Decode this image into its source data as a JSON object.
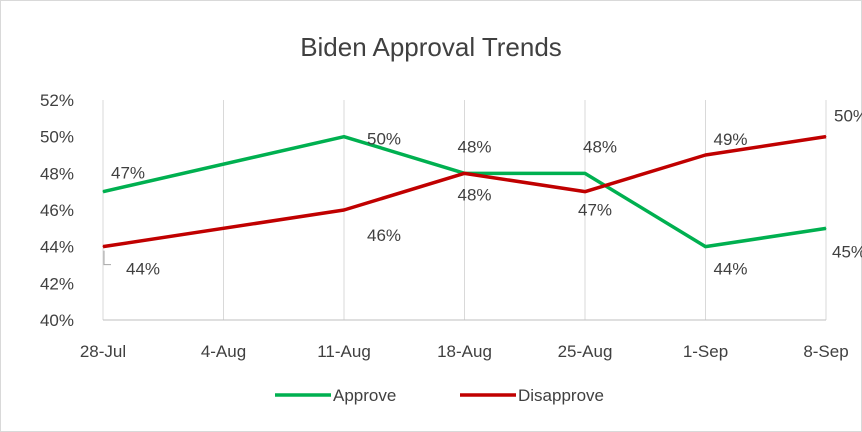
{
  "chart_data": {
    "type": "line",
    "title": "Biden Approval Trends",
    "categories": [
      "28-Jul",
      "4-Aug",
      "11-Aug",
      "18-Aug",
      "25-Aug",
      "1-Sep",
      "8-Sep"
    ],
    "ylim": [
      40,
      52
    ],
    "yticks": [
      "40%",
      "42%",
      "44%",
      "46%",
      "48%",
      "50%",
      "52%"
    ],
    "grid": "vertical",
    "legend": "bottom",
    "series": [
      {
        "name": "Approve",
        "color": "#00b050",
        "points": [
          {
            "x": "28-Jul",
            "y": 47,
            "label": "47%"
          },
          {
            "x": "11-Aug",
            "y": 50,
            "label": "50%"
          },
          {
            "x": "18-Aug",
            "y": 48,
            "label": "48%"
          },
          {
            "x": "25-Aug",
            "y": 48,
            "label": "48%"
          },
          {
            "x": "1-Sep",
            "y": 44,
            "label": "44%"
          },
          {
            "x": "8-Sep",
            "y": 45,
            "label": "45%"
          }
        ]
      },
      {
        "name": "Disapprove",
        "color": "#c00000",
        "points": [
          {
            "x": "28-Jul",
            "y": 44,
            "label": "44%"
          },
          {
            "x": "11-Aug",
            "y": 46,
            "label": "46%"
          },
          {
            "x": "18-Aug",
            "y": 48,
            "label": "48%"
          },
          {
            "x": "25-Aug",
            "y": 47,
            "label": "47%"
          },
          {
            "x": "1-Sep",
            "y": 49,
            "label": "49%"
          },
          {
            "x": "8-Sep",
            "y": 50,
            "label": "50%"
          }
        ]
      }
    ]
  }
}
